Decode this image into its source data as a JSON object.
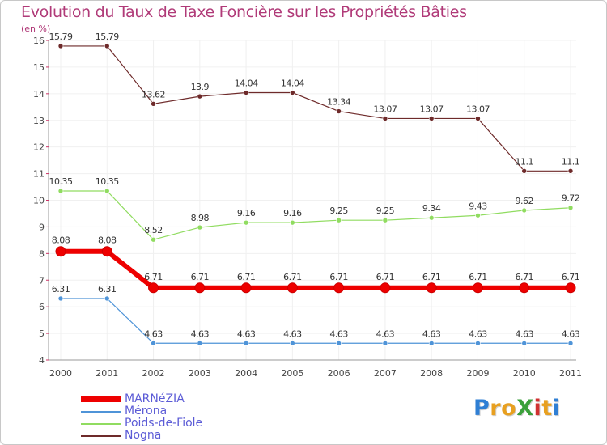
{
  "title": "Evolution du Taux de Taxe Foncière sur les Propriétés Bâties",
  "unit": "(en %)",
  "brand": {
    "text": "ProXiti",
    "letters": [
      {
        "ch": "P",
        "color": "#2f7fd4"
      },
      {
        "ch": "r",
        "color": "#e8a020"
      },
      {
        "ch": "o",
        "color": "#e8a020"
      },
      {
        "ch": "X",
        "color": "#3aa03a"
      },
      {
        "ch": "i",
        "color": "#d03030"
      },
      {
        "ch": "t",
        "color": "#e8a020"
      },
      {
        "ch": "i",
        "color": "#2f7fd4"
      }
    ]
  },
  "chart_data": {
    "type": "line",
    "title": "Evolution du Taux de Taxe Foncière sur les Propriétés Bâties",
    "ylabel": "(en %)",
    "xlabel": "",
    "categories": [
      "2000",
      "2001",
      "2002",
      "2003",
      "2004",
      "2005",
      "2006",
      "2007",
      "2008",
      "2009",
      "2010",
      "2011"
    ],
    "ylim": [
      4,
      16
    ],
    "yticks": [
      4,
      5,
      6,
      7,
      8,
      9,
      10,
      11,
      12,
      13,
      14,
      15,
      16
    ],
    "grid": true,
    "legend_position": "bottom-left",
    "series": [
      {
        "name": "Nogna",
        "color": "#6e2a2a",
        "labels": [
          "15.79",
          "15.79",
          "13.62",
          "13.9",
          "14.04",
          "14.04",
          "13.34",
          "13.07",
          "13.07",
          "13.07",
          "11.1",
          "11.1"
        ],
        "values": [
          15.79,
          15.79,
          13.62,
          13.9,
          14.04,
          14.04,
          13.34,
          13.07,
          13.07,
          13.07,
          11.1,
          11.1
        ]
      },
      {
        "name": "Poids-de-Fiole",
        "color": "#90dc60",
        "labels": [
          "10.35",
          "10.35",
          "8.52",
          "8.98",
          "9.16",
          "9.16",
          "9.25",
          "9.25",
          "9.34",
          "9.43",
          "9.62",
          "9.72"
        ],
        "values": [
          10.35,
          10.35,
          8.52,
          8.98,
          9.16,
          9.16,
          9.25,
          9.25,
          9.34,
          9.43,
          9.62,
          9.72
        ]
      },
      {
        "name": "MARNéZIA",
        "color": "#ee0000",
        "labels": [
          "8.08",
          "8.08",
          "6.71",
          "6.71",
          "6.71",
          "6.71",
          "6.71",
          "6.71",
          "6.71",
          "6.71",
          "6.71",
          "6.71"
        ],
        "values": [
          8.08,
          8.08,
          6.71,
          6.71,
          6.71,
          6.71,
          6.71,
          6.71,
          6.71,
          6.71,
          6.71,
          6.71
        ]
      },
      {
        "name": "Mérona",
        "color": "#4f94d8",
        "labels": [
          "6.31",
          "6.31",
          "4.63",
          "4.63",
          "4.63",
          "4.63",
          "4.63",
          "4.63",
          "4.63",
          "4.63",
          "4.63",
          "4.63"
        ],
        "values": [
          6.31,
          6.31,
          4.63,
          4.63,
          4.63,
          4.63,
          4.63,
          4.63,
          4.63,
          4.63,
          4.63,
          4.63
        ]
      }
    ],
    "legend": [
      {
        "name": "MARNéZIA",
        "color": "#ee0000"
      },
      {
        "name": "Mérona",
        "color": "#4f94d8"
      },
      {
        "name": "Poids-de-Fiole",
        "color": "#90dc60"
      },
      {
        "name": "Nogna",
        "color": "#6e2a2a"
      }
    ]
  }
}
